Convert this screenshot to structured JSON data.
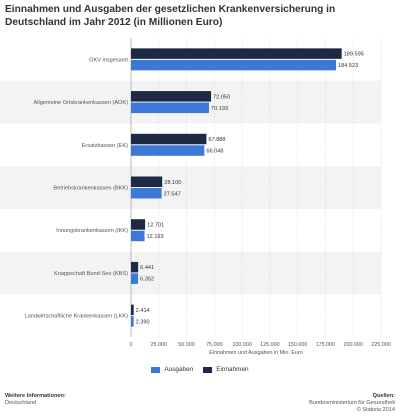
{
  "chart_data": {
    "type": "bar",
    "orientation": "horizontal",
    "title": "Einnahmen und Ausgaben der gesetzlichen Krankenversicherung in Deutschland im Jahr 2012 (in Millionen Euro)",
    "xlabel": "Einnahmen und Ausgaben in Mio. Euro",
    "ylabel": "",
    "xlim": [
      0,
      225000
    ],
    "ticks": [
      0,
      25000,
      50000,
      75000,
      100000,
      125000,
      150000,
      175000,
      200000,
      225000
    ],
    "tick_labels": [
      "0",
      "25.000",
      "50.000",
      "75.000",
      "100.000",
      "125.000",
      "150.000",
      "175.000",
      "200.000",
      "225.000"
    ],
    "grid": true,
    "legend_position": "bottom",
    "categories": [
      "GKV insgesamt",
      "Allgemeine Ortskrankenkassen (AOK)",
      "Ersatzkassen (EK)",
      "Betriebskrankenkassen (BKK)",
      "Innungskrankenkassen (IKK)",
      "Knappschaft Bund-See (KBS)",
      "Landwirtschaftliche Krankenkassen (LKK)"
    ],
    "series": [
      {
        "name": "Einnahmen",
        "color": "#1c2a43",
        "values": [
          189595,
          72050,
          67888,
          28100,
          12701,
          6441,
          2414
        ],
        "labels": [
          "189.595",
          "72.050",
          "67.888",
          "28.100",
          "12.701",
          "6.441",
          "2.414"
        ]
      },
      {
        "name": "Ausgaben",
        "color": "#3a79d6",
        "values": [
          184523,
          70193,
          66048,
          27547,
          12193,
          6352,
          2390
        ],
        "labels": [
          "184.523",
          "70.193",
          "66.048",
          "27.547",
          "12.193",
          "6.352",
          "2.390"
        ]
      }
    ]
  },
  "legend": {
    "items": [
      {
        "label": "Ausgaben",
        "color": "#3a79d6"
      },
      {
        "label": "Einnahmen",
        "color": "#1c2a43"
      }
    ]
  },
  "footer": {
    "left_heading": "Weitere Informationen:",
    "left_text": "Deutschland",
    "right_heading": "Quellen:",
    "right_line1": "Bundesministerium für Gesundheit",
    "right_line2": "© Statista 2014"
  }
}
